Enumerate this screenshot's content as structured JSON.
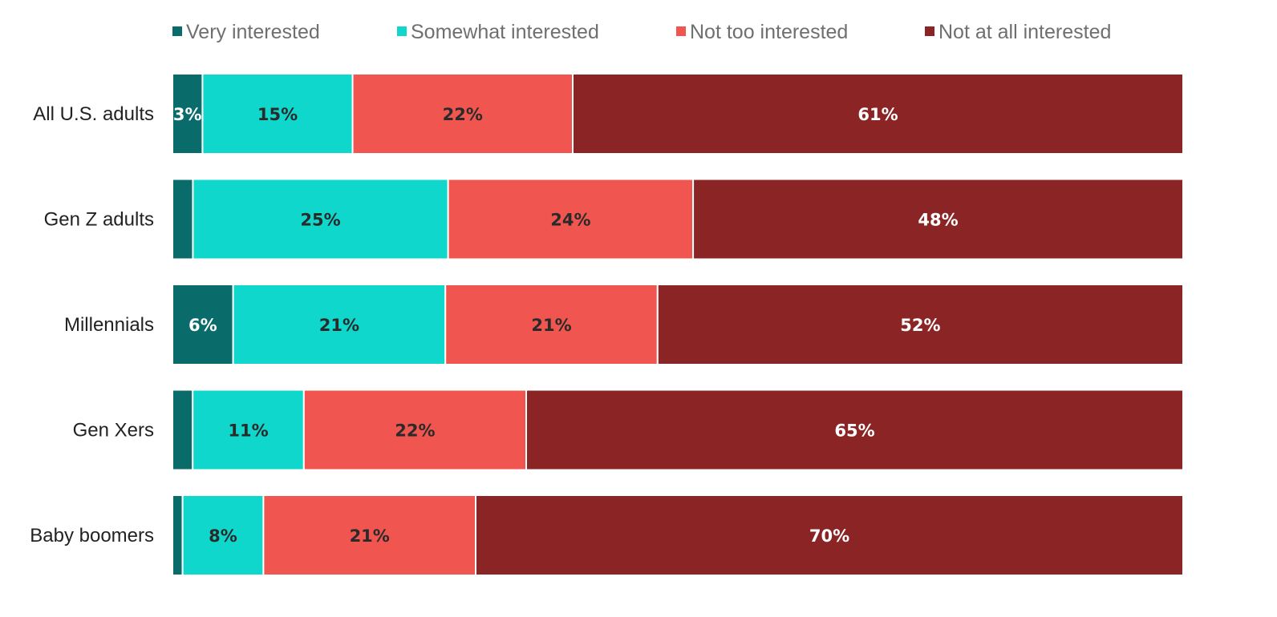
{
  "chart_data": {
    "type": "bar",
    "orientation": "horizontal",
    "stacked": true,
    "title": "",
    "xlabel": "",
    "ylabel": "",
    "xlim": [
      0,
      100
    ],
    "legend_position": "top",
    "grid": false,
    "categories": [
      "All U.S. adults",
      "Gen Z adults",
      "Millennials",
      "Gen Xers",
      "Baby boomers"
    ],
    "series": [
      {
        "name": "Very interested",
        "color": "#0a6b6b",
        "label_color": "#ffffff",
        "values": [
          3,
          2,
          6,
          2,
          1
        ],
        "labels": [
          "3%",
          "",
          "6%",
          "",
          ""
        ]
      },
      {
        "name": "Somewhat interested",
        "color": "#10d7cc",
        "label_color": "#2a2a2a",
        "values": [
          15,
          25,
          21,
          11,
          8
        ],
        "labels": [
          "15%",
          "25%",
          "21%",
          "11%",
          "8%"
        ]
      },
      {
        "name": "Not too interested",
        "color": "#f0564f",
        "label_color": "#2a2a2a",
        "values": [
          22,
          24,
          21,
          22,
          21
        ],
        "labels": [
          "22%",
          "24%",
          "21%",
          "22%",
          "21%"
        ]
      },
      {
        "name": "Not at all interested",
        "color": "#8b2525",
        "label_color": "#ffffff",
        "values": [
          61,
          48,
          52,
          65,
          70
        ],
        "labels": [
          "61%",
          "48%",
          "52%",
          "65%",
          "70%"
        ]
      }
    ]
  }
}
